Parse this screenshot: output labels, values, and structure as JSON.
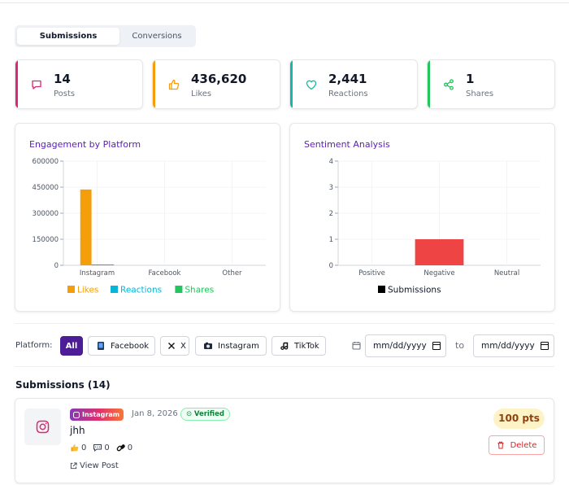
{
  "tabs": [
    {
      "label": "Submissions",
      "active": true
    },
    {
      "label": "Conversions",
      "active": false
    }
  ],
  "stats": [
    {
      "value": "14",
      "label": "Posts",
      "color": "#db2777",
      "icon": "message-square-icon"
    },
    {
      "value": "436,620",
      "label": "Likes",
      "color": "#f59e0b",
      "icon": "thumbs-up-icon"
    },
    {
      "value": "2,441",
      "label": "Reactions",
      "color": "#14b8a6",
      "icon": "heart-icon"
    },
    {
      "value": "1",
      "label": "Shares",
      "color": "#22c55e",
      "icon": "share-icon"
    }
  ],
  "chart_data": [
    {
      "type": "bar",
      "title": "Engagement by Platform",
      "categories": [
        "Instagram",
        "Facebook",
        "Other"
      ],
      "series": [
        {
          "name": "Likes",
          "values": [
            436620,
            0,
            0
          ],
          "color": "#f59e0b"
        },
        {
          "name": "Reactions",
          "values": [
            2441,
            0,
            0
          ],
          "color": "#06b6d4"
        },
        {
          "name": "Shares",
          "values": [
            1,
            0,
            0
          ],
          "color": "#22c55e"
        }
      ],
      "ylim": [
        0,
        600000
      ],
      "yticks": [
        0,
        150000,
        300000,
        450000,
        600000
      ],
      "ytick_labels": [
        "0",
        "150000",
        "300000",
        "450000",
        "600000"
      ],
      "grid": true,
      "legend": "bottom"
    },
    {
      "type": "bar",
      "title": "Sentiment Analysis",
      "categories": [
        "Positive",
        "Negative",
        "Neutral"
      ],
      "series": [
        {
          "name": "Submissions",
          "values": [
            0,
            1,
            0
          ],
          "color": "#ef4444"
        }
      ],
      "legend_swatch_color": "#000000",
      "ylim": [
        0,
        4
      ],
      "yticks": [
        0,
        1,
        2,
        3,
        4
      ],
      "ytick_labels": [
        "0",
        "1",
        "2",
        "3",
        "4"
      ],
      "grid": true,
      "legend": "bottom"
    }
  ],
  "filters": {
    "platform_label": "Platform:",
    "buttons": [
      {
        "label": "All",
        "active": true,
        "icon": ""
      },
      {
        "label": "Facebook",
        "active": false,
        "icon": "facebook-icon"
      },
      {
        "label": "X",
        "active": false,
        "icon": "x-icon"
      },
      {
        "label": "Instagram",
        "active": false,
        "icon": "instagram-icon"
      },
      {
        "label": "TikTok",
        "active": false,
        "icon": "tiktok-icon"
      }
    ],
    "date_from_placeholder": "mm/dd/yyyy",
    "to_label": "to",
    "date_to_placeholder": "mm/dd/yyyy"
  },
  "submissions": {
    "title": "Submissions (14)",
    "items": [
      {
        "platform_badge": "Instagram",
        "date": "Jan 8, 2026",
        "status": "Verified",
        "text": "jhh",
        "likes": "0",
        "comments": "0",
        "shares": "0",
        "view_label": "View Post",
        "points": "100 pts",
        "delete_label": "Delete"
      }
    ]
  }
}
